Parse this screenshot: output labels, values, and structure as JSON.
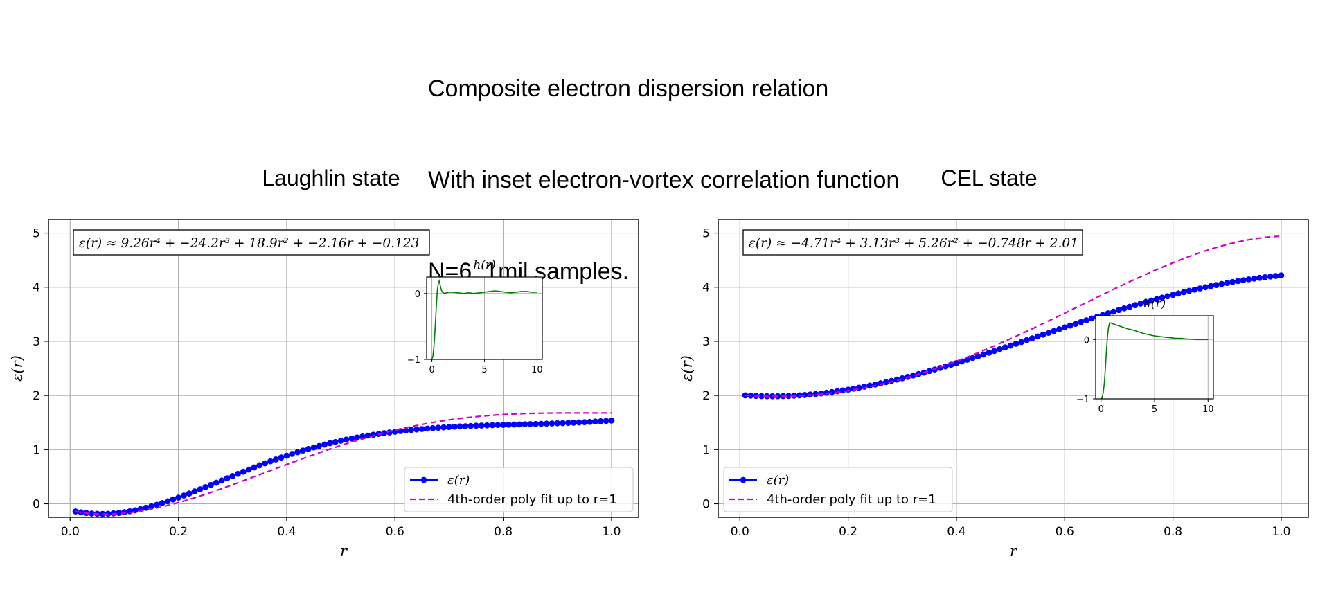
{
  "figure": {
    "suptitle_lines": [
      "Composite electron dispersion relation",
      "With inset electron-vortex correlation function",
      "N=6, 1mil samples."
    ]
  },
  "chart_data": [
    {
      "type": "line",
      "title": "Laughlin state",
      "xlabel": "r",
      "ylabel": "ε(r)",
      "xlim": [
        -0.04,
        1.05
      ],
      "ylim": [
        -0.25,
        5.25
      ],
      "xticks": [
        0.0,
        0.2,
        0.4,
        0.6,
        0.8,
        1.0
      ],
      "xtick_labels": [
        "0.0",
        "0.2",
        "0.4",
        "0.6",
        "0.8",
        "1.0"
      ],
      "yticks": [
        0,
        1,
        2,
        3,
        4,
        5
      ],
      "ytick_labels": [
        "0",
        "1",
        "2",
        "3",
        "4",
        "5"
      ],
      "grid": true,
      "annotation": "ε(r) ≈ 9.26r⁴ + −24.2r³ + 18.9r² + −2.16r + −0.123",
      "legend": {
        "placement": "lower right",
        "entries": [
          "ε(r)",
          "4th-order poly fit up to r=1"
        ]
      },
      "series": [
        {
          "name": "ε(r)",
          "color": "#0000ff",
          "style": "line-with-markers",
          "x": [
            0.01,
            0.02,
            0.03,
            0.04,
            0.05,
            0.06,
            0.07,
            0.08,
            0.09,
            0.1,
            0.11,
            0.12,
            0.13,
            0.14,
            0.15,
            0.16,
            0.17,
            0.18,
            0.19,
            0.2,
            0.21,
            0.22,
            0.23,
            0.24,
            0.25,
            0.26,
            0.27,
            0.28,
            0.29,
            0.3,
            0.31,
            0.32,
            0.33,
            0.34,
            0.35,
            0.36,
            0.37,
            0.38,
            0.39,
            0.4,
            0.41,
            0.42,
            0.43,
            0.44,
            0.45,
            0.46,
            0.47,
            0.48,
            0.49,
            0.5,
            0.51,
            0.52,
            0.53,
            0.54,
            0.55,
            0.56,
            0.57,
            0.58,
            0.59,
            0.6,
            0.61,
            0.62,
            0.63,
            0.64,
            0.65,
            0.66,
            0.67,
            0.68,
            0.69,
            0.7,
            0.71,
            0.72,
            0.73,
            0.74,
            0.75,
            0.76,
            0.77,
            0.78,
            0.79,
            0.8,
            0.81,
            0.82,
            0.83,
            0.84,
            0.85,
            0.86,
            0.87,
            0.88,
            0.89,
            0.9,
            0.91,
            0.92,
            0.93,
            0.94,
            0.95,
            0.96,
            0.97,
            0.98,
            0.99,
            1.0
          ],
          "y": [
            -0.142,
            -0.158,
            -0.171,
            -0.18,
            -0.185,
            -0.186,
            -0.184,
            -0.177,
            -0.168,
            -0.155,
            -0.139,
            -0.12,
            -0.098,
            -0.074,
            -0.047,
            -0.018,
            0.013,
            0.045,
            0.08,
            0.115,
            0.152,
            0.19,
            0.229,
            0.268,
            0.308,
            0.349,
            0.389,
            0.43,
            0.471,
            0.512,
            0.553,
            0.593,
            0.632,
            0.671,
            0.71,
            0.747,
            0.784,
            0.819,
            0.854,
            0.888,
            0.921,
            0.952,
            0.983,
            1.012,
            1.04,
            1.067,
            1.093,
            1.118,
            1.141,
            1.164,
            1.185,
            1.205,
            1.224,
            1.242,
            1.259,
            1.275,
            1.29,
            1.304,
            1.317,
            1.33,
            1.342,
            1.352,
            1.363,
            1.372,
            1.381,
            1.389,
            1.397,
            1.404,
            1.411,
            1.417,
            1.422,
            1.428,
            1.432,
            1.437,
            1.441,
            1.445,
            1.448,
            1.452,
            1.455,
            1.458,
            1.461,
            1.463,
            1.466,
            1.469,
            1.472,
            1.474,
            1.477,
            1.48,
            1.483,
            1.487,
            1.49,
            1.494,
            1.498,
            1.502,
            1.507,
            1.512,
            1.518,
            1.524,
            1.53,
            1.537
          ]
        },
        {
          "name": "4th-order poly fit up to r=1",
          "color": "#cc00cc",
          "style": "dashed",
          "coefficients": [
            9.26,
            -24.2,
            18.9,
            -2.16,
            -0.123
          ]
        }
      ],
      "inset": {
        "title": "h(r)",
        "xlim": [
          -0.5,
          10.5
        ],
        "ylim": [
          -1,
          0.25
        ],
        "xticks": [
          0,
          5,
          10
        ],
        "xtick_labels": [
          "0",
          "5",
          "10"
        ],
        "yticks": [
          -1,
          0
        ],
        "ytick_labels": [
          "−1",
          "0"
        ],
        "grid": true,
        "color": "#008000",
        "x": [
          0,
          0.1,
          0.2,
          0.3,
          0.4,
          0.5,
          0.6,
          0.7,
          0.8,
          0.9,
          1.0,
          1.1,
          1.2,
          1.4,
          1.6,
          1.8,
          2.0,
          2.5,
          3.0,
          3.5,
          4.0,
          4.5,
          5.0,
          5.5,
          6.0,
          6.5,
          7.0,
          7.5,
          8.0,
          8.5,
          9.0,
          9.5,
          10.0
        ],
        "y": [
          -1.0,
          -0.95,
          -0.8,
          -0.55,
          -0.25,
          0.02,
          0.15,
          0.19,
          0.12,
          0.05,
          0.02,
          0.01,
          0.0,
          0.01,
          0.02,
          0.02,
          0.02,
          0.01,
          0.0,
          0.01,
          0.0,
          0.01,
          0.02,
          0.03,
          0.04,
          0.03,
          0.02,
          0.01,
          0.02,
          0.03,
          0.03,
          0.02,
          0.02
        ]
      }
    },
    {
      "type": "line",
      "title": "CEL state",
      "xlabel": "r",
      "ylabel": "ε(r)",
      "xlim": [
        -0.04,
        1.05
      ],
      "ylim": [
        -0.25,
        5.25
      ],
      "xticks": [
        0.0,
        0.2,
        0.4,
        0.6,
        0.8,
        1.0
      ],
      "xtick_labels": [
        "0.0",
        "0.2",
        "0.4",
        "0.6",
        "0.8",
        "1.0"
      ],
      "yticks": [
        0,
        1,
        2,
        3,
        4,
        5
      ],
      "ytick_labels": [
        "0",
        "1",
        "2",
        "3",
        "4",
        "5"
      ],
      "grid": true,
      "annotation": "ε(r) ≈ −4.71r⁴ + 3.13r³ + 5.26r² + −0.748r + 2.01",
      "legend": {
        "placement": "lower left",
        "entries": [
          "ε(r)",
          "4th-order poly fit up to r=1"
        ]
      },
      "series": [
        {
          "name": "ε(r)",
          "color": "#0000ff",
          "style": "line-with-markers",
          "x": [
            0.01,
            0.02,
            0.03,
            0.04,
            0.05,
            0.06,
            0.07,
            0.08,
            0.09,
            0.1,
            0.11,
            0.12,
            0.13,
            0.14,
            0.15,
            0.16,
            0.17,
            0.18,
            0.19,
            0.2,
            0.21,
            0.22,
            0.23,
            0.24,
            0.25,
            0.26,
            0.27,
            0.28,
            0.29,
            0.3,
            0.31,
            0.32,
            0.33,
            0.34,
            0.35,
            0.36,
            0.37,
            0.38,
            0.39,
            0.4,
            0.41,
            0.42,
            0.43,
            0.44,
            0.45,
            0.46,
            0.47,
            0.48,
            0.49,
            0.5,
            0.51,
            0.52,
            0.53,
            0.54,
            0.55,
            0.56,
            0.57,
            0.58,
            0.59,
            0.6,
            0.61,
            0.62,
            0.63,
            0.64,
            0.65,
            0.66,
            0.67,
            0.68,
            0.69,
            0.7,
            0.71,
            0.72,
            0.73,
            0.74,
            0.75,
            0.76,
            0.77,
            0.78,
            0.79,
            0.8,
            0.81,
            0.82,
            0.83,
            0.84,
            0.85,
            0.86,
            0.87,
            0.88,
            0.89,
            0.9,
            0.91,
            0.92,
            0.93,
            0.94,
            0.95,
            0.96,
            0.97,
            0.98,
            0.99,
            1.0
          ],
          "y": [
            2.003,
            1.997,
            1.992,
            1.988,
            1.986,
            1.985,
            1.986,
            1.988,
            1.991,
            1.996,
            2.002,
            2.009,
            2.018,
            2.027,
            2.038,
            2.05,
            2.063,
            2.077,
            2.092,
            2.108,
            2.125,
            2.143,
            2.162,
            2.181,
            2.202,
            2.224,
            2.246,
            2.269,
            2.293,
            2.317,
            2.343,
            2.369,
            2.395,
            2.422,
            2.45,
            2.479,
            2.508,
            2.537,
            2.567,
            2.598,
            2.629,
            2.66,
            2.692,
            2.724,
            2.756,
            2.789,
            2.822,
            2.855,
            2.888,
            2.921,
            2.955,
            2.988,
            3.022,
            3.056,
            3.09,
            3.123,
            3.157,
            3.191,
            3.224,
            3.258,
            3.291,
            3.324,
            3.357,
            3.389,
            3.422,
            3.454,
            3.485,
            3.517,
            3.548,
            3.578,
            3.609,
            3.638,
            3.668,
            3.697,
            3.725,
            3.753,
            3.78,
            3.807,
            3.833,
            3.859,
            3.884,
            3.908,
            3.932,
            3.955,
            3.977,
            3.999,
            4.02,
            4.04,
            4.06,
            4.078,
            4.096,
            4.113,
            4.129,
            4.145,
            4.159,
            4.173,
            4.185,
            4.197,
            4.208,
            4.218
          ]
        },
        {
          "name": "4th-order poly fit up to r=1",
          "color": "#cc00cc",
          "style": "dashed",
          "coefficients": [
            -4.71,
            3.13,
            5.26,
            -0.748,
            2.01
          ]
        }
      ],
      "inset": {
        "title": "h(r)",
        "xlim": [
          -0.5,
          10.5
        ],
        "ylim": [
          -1,
          0.4
        ],
        "xticks": [
          0,
          5,
          10
        ],
        "xtick_labels": [
          "0",
          "5",
          "10"
        ],
        "yticks": [
          -1,
          0
        ],
        "ytick_labels": [
          "−1",
          "0"
        ],
        "grid": true,
        "color": "#008000",
        "x": [
          0,
          0.1,
          0.2,
          0.3,
          0.4,
          0.5,
          0.6,
          0.7,
          0.8,
          0.9,
          1.0,
          1.2,
          1.5,
          2.0,
          2.5,
          3.0,
          3.5,
          4.0,
          4.5,
          5.0,
          5.5,
          6.0,
          6.5,
          7.0,
          7.5,
          8.0,
          8.5,
          9.0,
          9.5,
          10.0
        ],
        "y": [
          -1.0,
          -0.98,
          -0.9,
          -0.75,
          -0.5,
          -0.2,
          0.05,
          0.2,
          0.28,
          0.28,
          0.27,
          0.26,
          0.24,
          0.21,
          0.18,
          0.16,
          0.13,
          0.1,
          0.08,
          0.06,
          0.05,
          0.04,
          0.03,
          0.02,
          0.02,
          0.01,
          0.005,
          0.0,
          0.0,
          0.0
        ]
      }
    }
  ]
}
